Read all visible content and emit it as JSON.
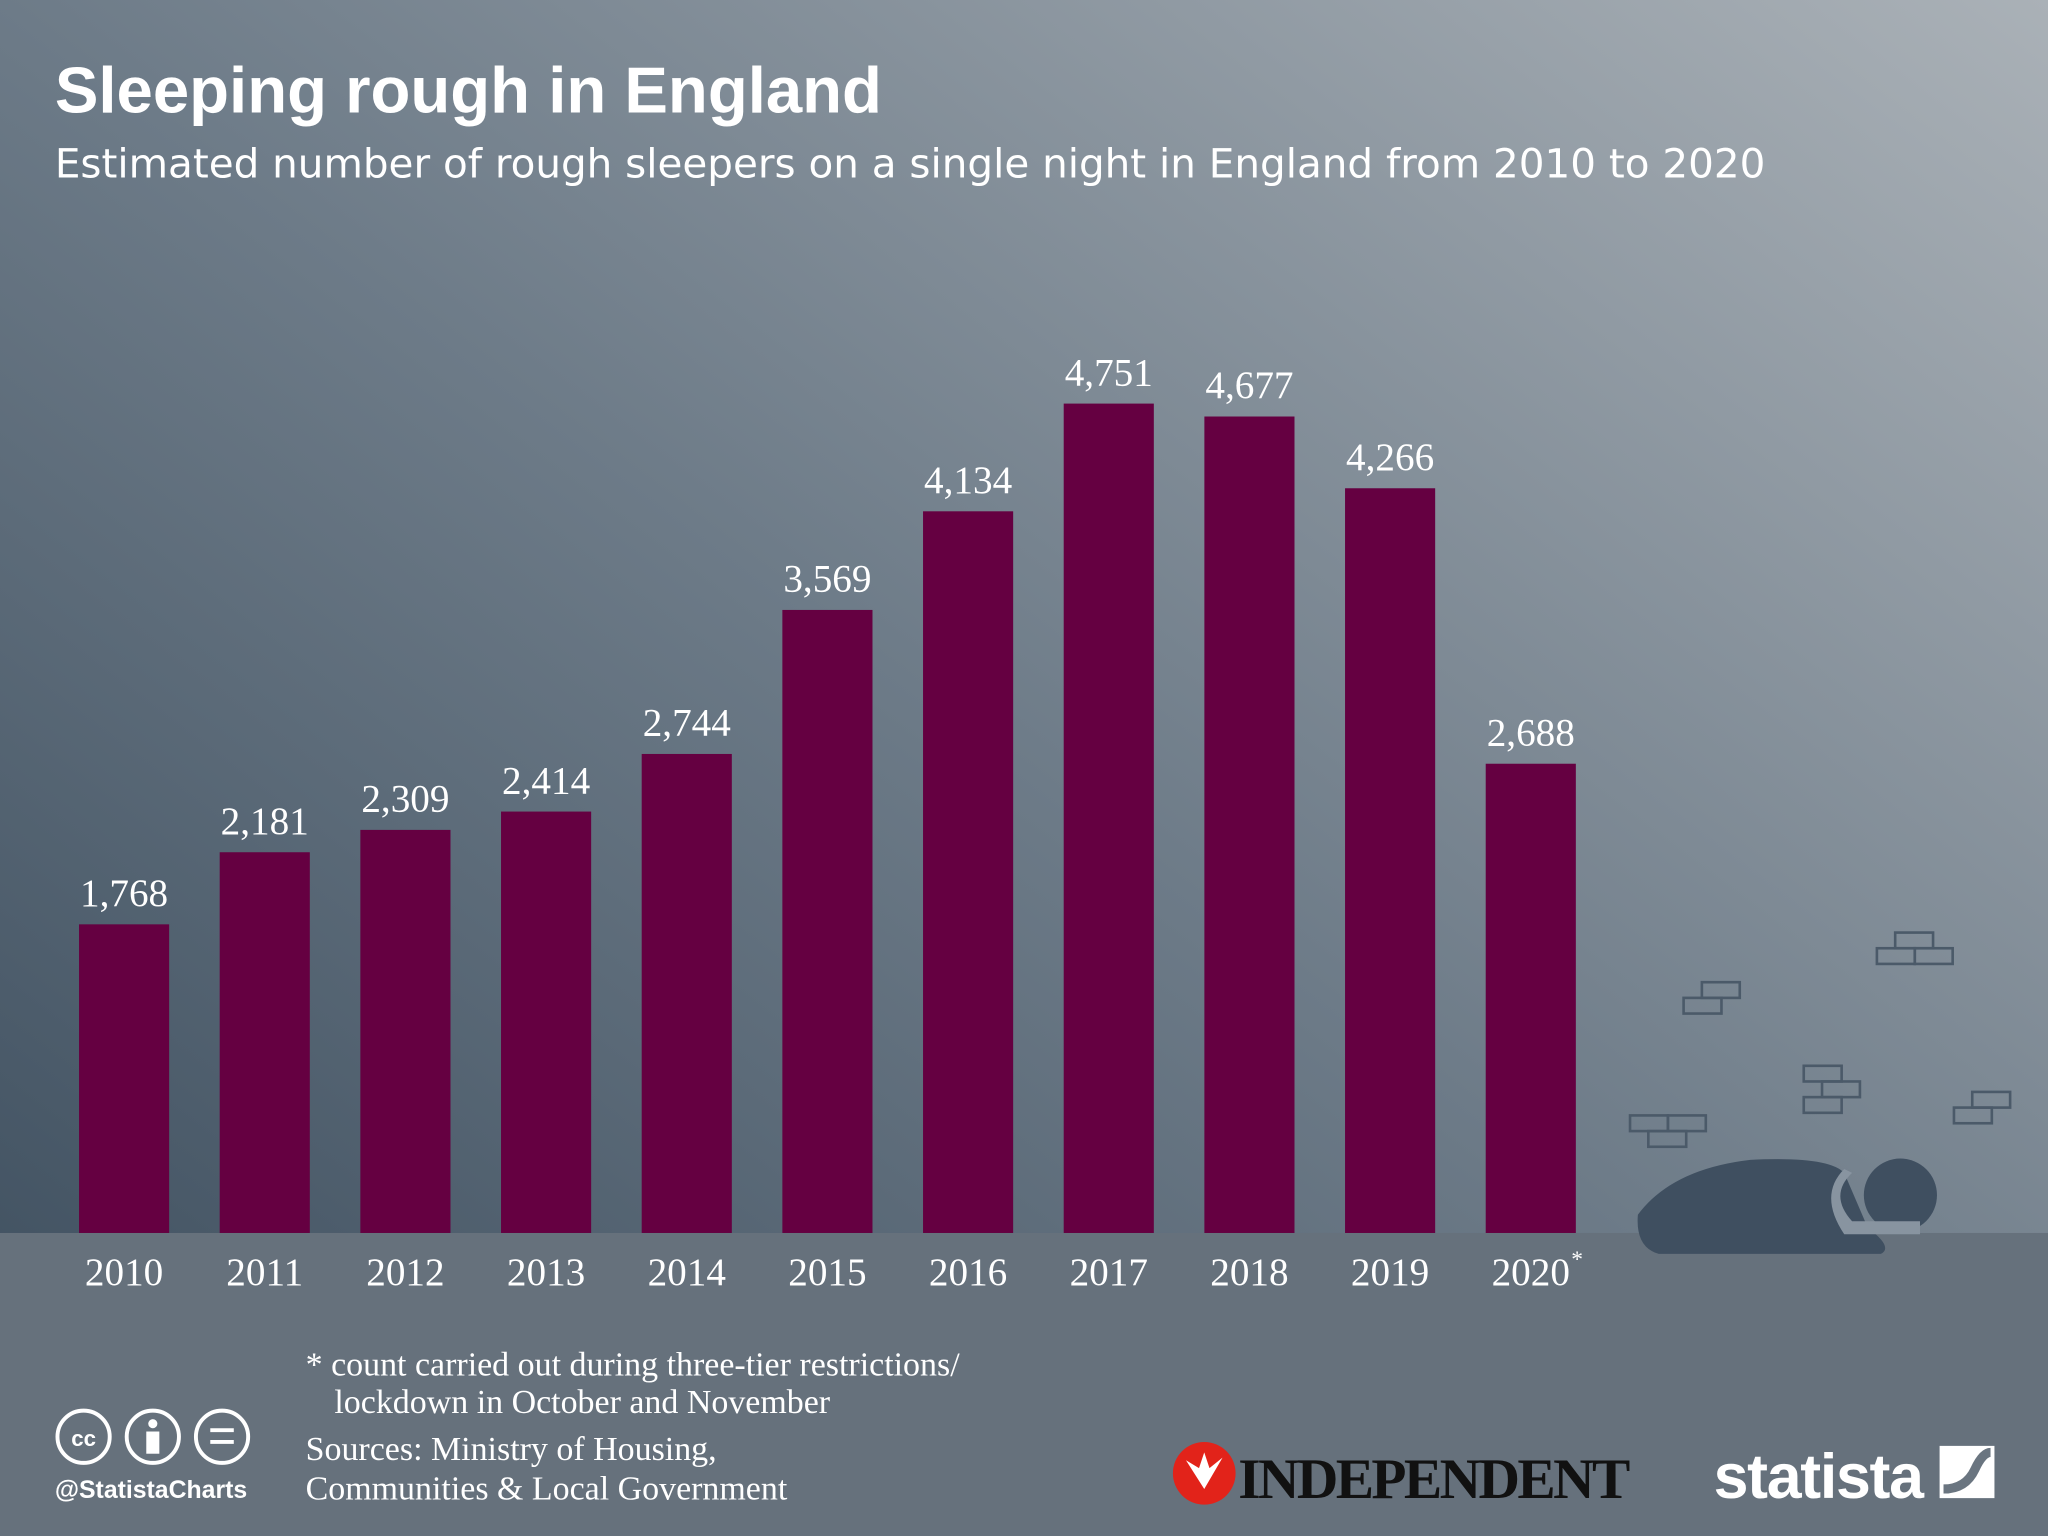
{
  "chart_data": {
    "type": "bar",
    "title": "Sleeping rough in England",
    "subtitle": "Estimated number of rough sleepers on a single night in England from 2010 to 2020",
    "categories": [
      "2010",
      "2011",
      "2012",
      "2013",
      "2014",
      "2015",
      "2016",
      "2017",
      "2018",
      "2019",
      "2020"
    ],
    "category_marker": "*",
    "values": [
      1768,
      2181,
      2309,
      2414,
      2744,
      3569,
      4134,
      4751,
      4677,
      4266,
      2688
    ],
    "value_labels": [
      "1,768",
      "2,181",
      "2,309",
      "2,414",
      "2,744",
      "3,569",
      "4,134",
      "4,751",
      "4,677",
      "4,266",
      "2,688"
    ],
    "color": "#650041",
    "footnote": [
      "* count carried out during three-tier restrictions/",
      "lockdown in October and November"
    ],
    "sources": [
      "Sources: Ministry of Housing,",
      "Communities & Local Government"
    ],
    "handle": "@StatistaCharts",
    "partner": "INDEPENDENT",
    "brand": "statista"
  }
}
